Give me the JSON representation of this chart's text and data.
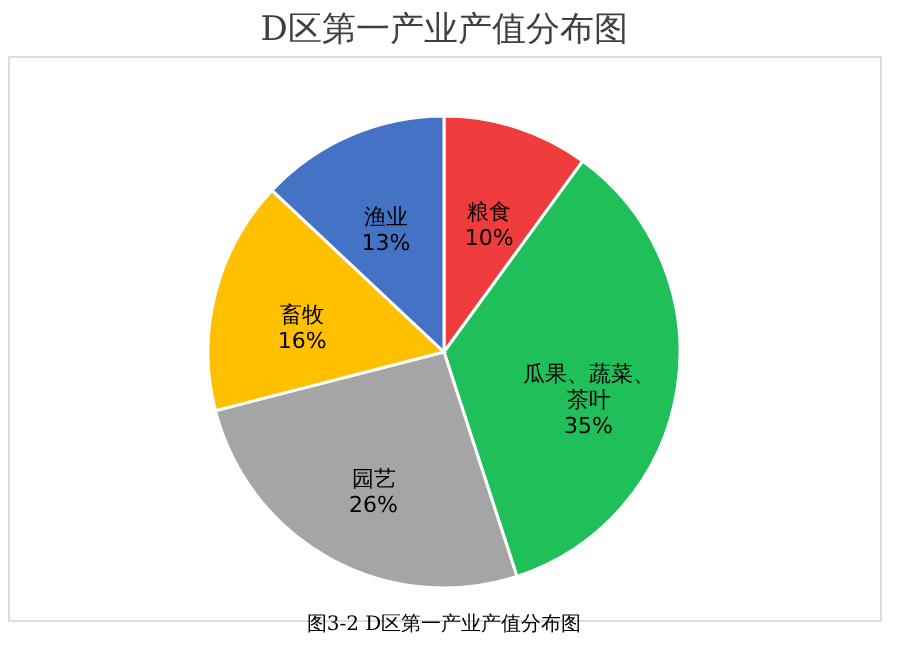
{
  "chart_data": {
    "type": "pie",
    "title": "D区第一产业产值分布图",
    "categories": [
      "粮食",
      "瓜果、蔬菜、茶叶",
      "园艺",
      "畜牧",
      "渔业"
    ],
    "values": [
      10,
      35,
      26,
      16,
      13
    ],
    "colors": [
      "#f03c3c",
      "#1fbf5a",
      "#a5a5a5",
      "#ffc000",
      "#4472c4"
    ],
    "value_labels": [
      "10%",
      "35%",
      "26%",
      "16%",
      "13%"
    ],
    "legend": false,
    "annotations": [
      "图3-2    D区第一产业产值分布图"
    ]
  }
}
